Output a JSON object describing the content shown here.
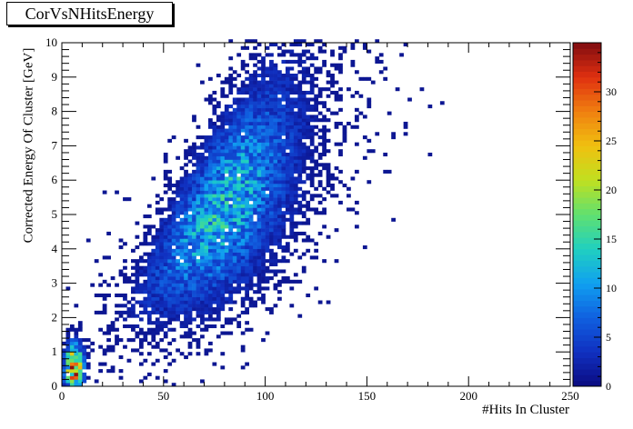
{
  "chart_data": {
    "type": "heatmap",
    "title": "CorVsNHitsEnergy",
    "xlabel": "#Hits In Cluster",
    "ylabel": "Corrected Energy Of Cluster [GeV]",
    "xlim": [
      0,
      250
    ],
    "ylim": [
      0,
      10
    ],
    "x_ticks": [
      0,
      50,
      100,
      150,
      200,
      250
    ],
    "y_ticks": [
      0,
      1,
      2,
      3,
      4,
      5,
      6,
      7,
      8,
      9,
      10
    ],
    "colorbar": {
      "range": [
        0,
        35
      ],
      "ticks": [
        0,
        5,
        10,
        15,
        20,
        25,
        30
      ]
    },
    "palette": [
      "#0b0b80",
      "#1030c0",
      "#1060e0",
      "#10a0f0",
      "#20d0c0",
      "#60e070",
      "#c0e020",
      "#f0c010",
      "#f08010",
      "#e03010",
      "#800c10"
    ],
    "clusters": [
      {
        "desc": "main diagonal band",
        "x_center": 75,
        "y_center": 5.0,
        "peak": 12
      },
      {
        "desc": "low-hit core",
        "x_center": 5,
        "y_center": 0.5,
        "peak": 35
      }
    ]
  }
}
